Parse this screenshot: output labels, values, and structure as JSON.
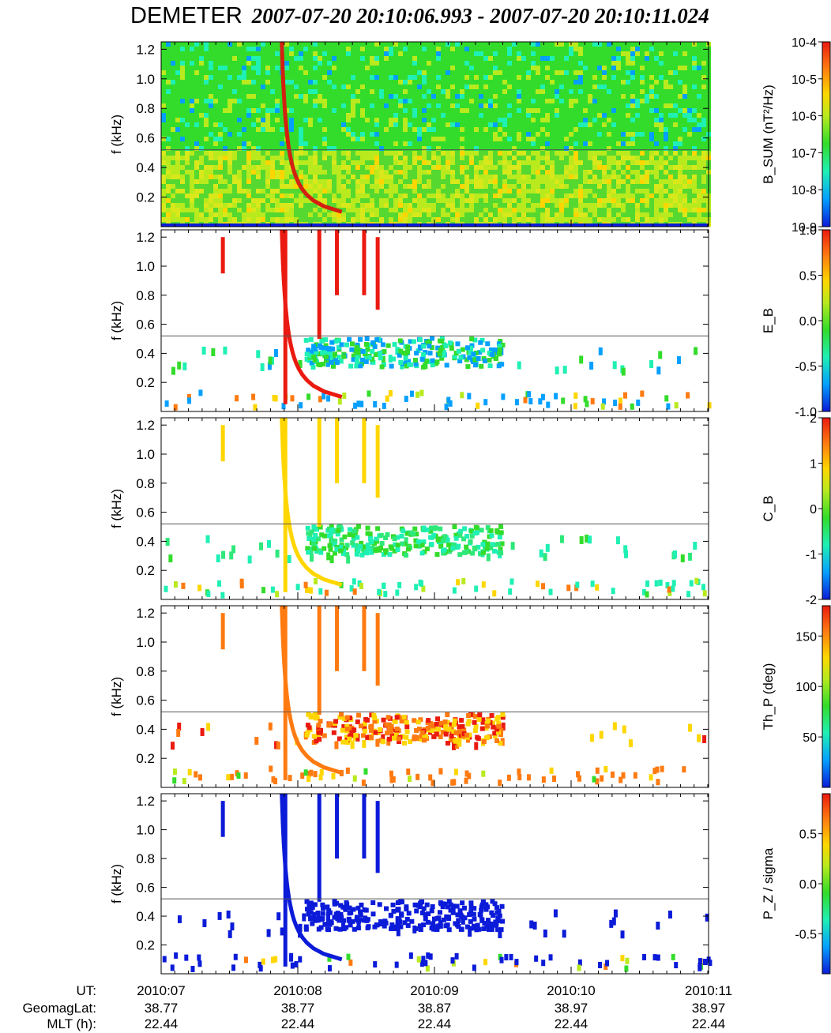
{
  "title": {
    "instrument": "DEMETER",
    "time_range": "2007-07-20 20:10:06.993 - 2007-07-20 20:10:11.024"
  },
  "chart_data": {
    "type": "heatmap",
    "title": "DEMETER  2007-07-20 20:10:06.993 - 2007-07-20 20:10:11.024",
    "panels": [
      {
        "ylabel": "f (kHz)",
        "colorbar_label": "B_SUM (nT²/Hz)",
        "colorbar_ticks": [
          "10-9",
          "10-8",
          "10-7",
          "10-6",
          "10-5",
          "10-4"
        ],
        "colorbar_scale": "log",
        "crange": [
          1e-09,
          0.0001
        ]
      },
      {
        "ylabel": "f (kHz)",
        "colorbar_label": "E_B",
        "colorbar_ticks": [
          "-1.0",
          "-0.5",
          "0.0",
          "0.5",
          "1.0"
        ],
        "crange": [
          -1.0,
          1.0
        ]
      },
      {
        "ylabel": "f (kHz)",
        "colorbar_label": "C_B",
        "colorbar_ticks": [
          "-2",
          "-1",
          "0",
          "1",
          "2"
        ],
        "crange": [
          -2,
          2
        ]
      },
      {
        "ylabel": "f (kHz)",
        "colorbar_label": "Th_P (deg)",
        "colorbar_ticks": [
          "50",
          "100",
          "150"
        ],
        "crange": [
          0,
          180
        ]
      },
      {
        "ylabel": "f (kHz)",
        "colorbar_label": "P_Z / sigma",
        "colorbar_ticks": [
          "-0.5",
          "0.0",
          "0.5"
        ],
        "crange": [
          -0.9,
          0.9
        ]
      }
    ],
    "y_ticks": [
      "0.2",
      "0.4",
      "0.6",
      "0.8",
      "1.0",
      "1.2"
    ],
    "ylim": [
      0.0,
      1.25
    ],
    "reference_line_khz": 0.52,
    "x_axis": {
      "row_labels": [
        "UT:",
        "GeomagLat:",
        "MLT (h):"
      ],
      "ticks": [
        {
          "ut": "2010:07",
          "lat": "38.77",
          "mlt": "22.44"
        },
        {
          "ut": "2010:08",
          "lat": "38.77",
          "mlt": "22.44"
        },
        {
          "ut": "2010:09",
          "lat": "38.87",
          "mlt": "22.44"
        },
        {
          "ut": "2010:10",
          "lat": "38.97",
          "mlt": "22.44"
        },
        {
          "ut": "2010:11",
          "lat": "38.97",
          "mlt": "22.44"
        }
      ]
    },
    "features": {
      "whistler_start_s": 8.75,
      "whistler_band_khz": [
        0.35,
        0.52
      ]
    }
  }
}
